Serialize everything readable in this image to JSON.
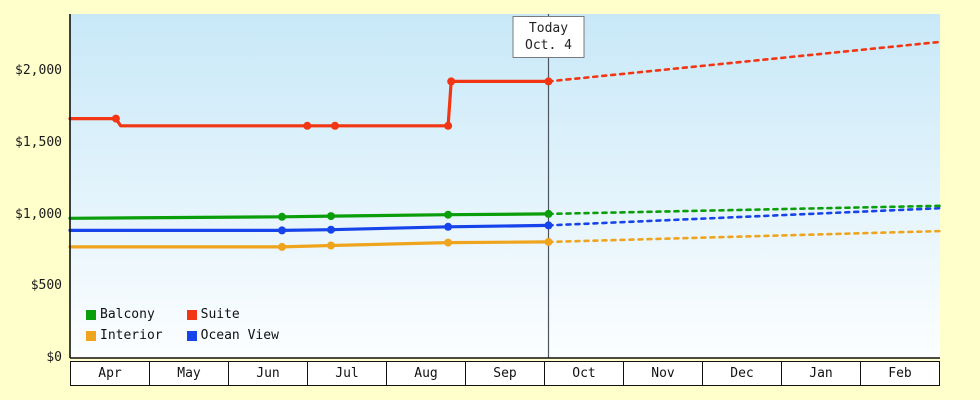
{
  "colors": {
    "page_background": "#ffffcc",
    "plot_gradient_top": "#c8e8f8",
    "plot_gradient_bottom": "#fcfeff",
    "axis": "#111111",
    "today_line": "#4d565c"
  },
  "chart_data": {
    "type": "line",
    "months": [
      "Apr",
      "May",
      "Jun",
      "Jul",
      "Aug",
      "Sep",
      "Oct",
      "Nov",
      "Dec",
      "Jan",
      "Feb"
    ],
    "y_ticks": [
      {
        "value": 0,
        "label": "$0"
      },
      {
        "value": 500,
        "label": "$500"
      },
      {
        "value": 1000,
        "label": "$1,000"
      },
      {
        "value": 1500,
        "label": "$1,500"
      },
      {
        "value": 2000,
        "label": "$2,000"
      }
    ],
    "ylim": [
      0,
      2400
    ],
    "xlim_months": 11,
    "grid": false,
    "today": {
      "x": 6.05,
      "lines": [
        "Today",
        "Oct. 4"
      ]
    },
    "series": [
      {
        "name": "Interior",
        "color": "#efa41e",
        "solid": [
          [
            0,
            775
          ],
          [
            2.68,
            775
          ],
          [
            3.3,
            785
          ],
          [
            4.78,
            805
          ],
          [
            6.05,
            810
          ]
        ],
        "markers": [
          [
            2.68,
            775
          ],
          [
            3.3,
            785
          ],
          [
            4.78,
            805
          ],
          [
            6.05,
            810
          ]
        ],
        "dotted": [
          [
            6.05,
            810
          ],
          [
            11,
            885
          ]
        ]
      },
      {
        "name": "Ocean View",
        "color": "#1743ea",
        "solid": [
          [
            0,
            890
          ],
          [
            2.68,
            890
          ],
          [
            3.3,
            895
          ],
          [
            4.78,
            915
          ],
          [
            6.05,
            925
          ]
        ],
        "markers": [
          [
            2.68,
            890
          ],
          [
            3.3,
            895
          ],
          [
            4.78,
            915
          ],
          [
            6.05,
            925
          ]
        ],
        "dotted": [
          [
            6.05,
            925
          ],
          [
            11,
            1045
          ]
        ]
      },
      {
        "name": "Balcony",
        "color": "#0a9e0a",
        "solid": [
          [
            0,
            975
          ],
          [
            2.68,
            985
          ],
          [
            3.3,
            990
          ],
          [
            4.78,
            1000
          ],
          [
            6.05,
            1005
          ]
        ],
        "markers": [
          [
            2.68,
            985
          ],
          [
            3.3,
            990
          ],
          [
            4.78,
            1000
          ],
          [
            6.05,
            1005
          ]
        ],
        "dotted": [
          [
            6.05,
            1005
          ],
          [
            11,
            1062
          ]
        ]
      },
      {
        "name": "Suite",
        "color": "#f23512",
        "solid": [
          [
            0,
            1670
          ],
          [
            0.58,
            1670
          ],
          [
            0.64,
            1620
          ],
          [
            3.0,
            1620
          ],
          [
            3.35,
            1620
          ],
          [
            4.78,
            1620
          ],
          [
            4.82,
            1930
          ],
          [
            6.05,
            1930
          ]
        ],
        "markers": [
          [
            0.58,
            1670
          ],
          [
            3.0,
            1620
          ],
          [
            3.35,
            1620
          ],
          [
            4.78,
            1620
          ],
          [
            4.82,
            1930
          ],
          [
            6.05,
            1930
          ]
        ],
        "dotted": [
          [
            6.05,
            1930
          ],
          [
            11,
            2205
          ]
        ]
      }
    ],
    "legend": {
      "position": "bottom-left",
      "items": [
        {
          "label": "Balcony",
          "color": "#0a9e0a"
        },
        {
          "label": "Suite",
          "color": "#f23512"
        },
        {
          "label": "Interior",
          "color": "#efa41e"
        },
        {
          "label": "Ocean View",
          "color": "#1743ea"
        }
      ]
    }
  }
}
